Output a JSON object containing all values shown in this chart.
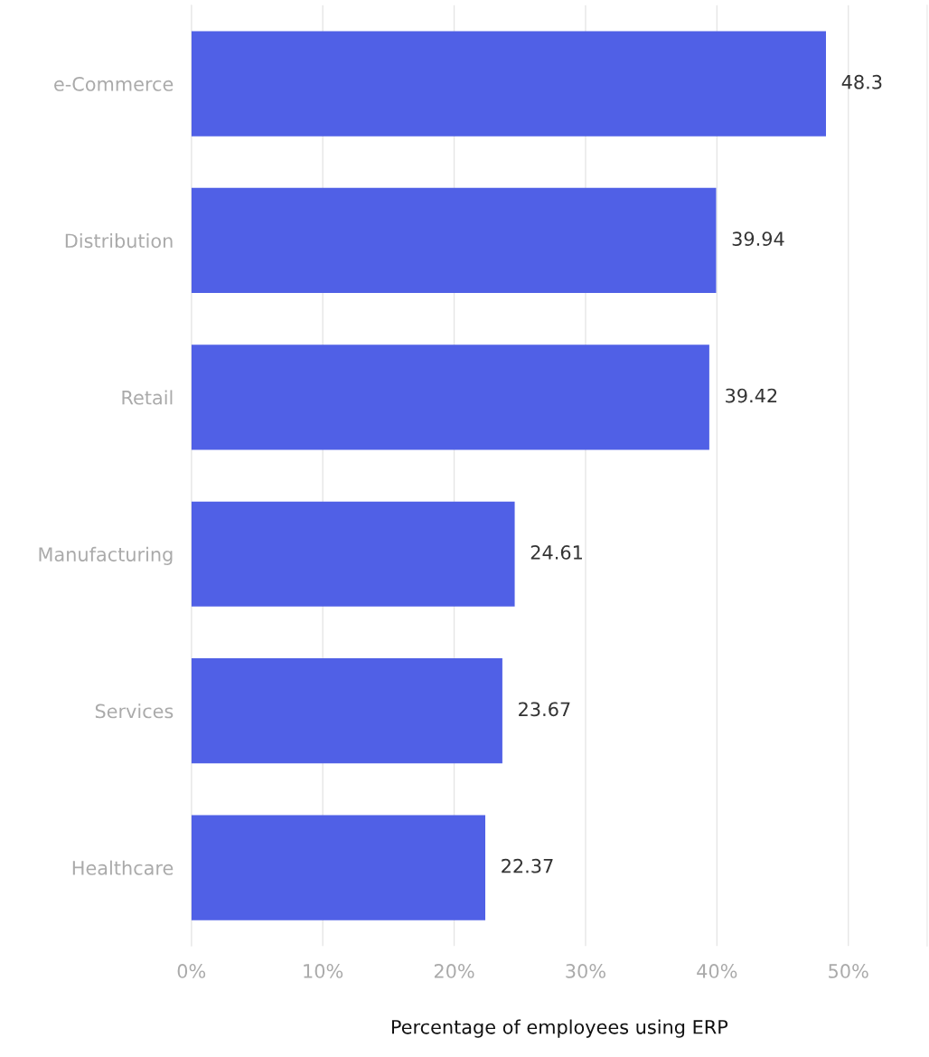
{
  "chart_data": {
    "type": "bar",
    "orientation": "horizontal",
    "xlabel": "Percentage of employees using ERP",
    "categories": [
      "e-Commerce",
      "Distribution",
      "Retail",
      "Manufacturing",
      "Services",
      "Healthcare"
    ],
    "values": [
      48.3,
      39.94,
      39.42,
      24.61,
      23.67,
      22.37
    ],
    "color": "#5060e6",
    "xlim": [
      0,
      56
    ],
    "xticks": [
      {
        "value": 0,
        "label": "0%"
      },
      {
        "value": 10,
        "label": "10%"
      },
      {
        "value": 20,
        "label": "20%"
      },
      {
        "value": 30,
        "label": "30%"
      },
      {
        "value": 40,
        "label": "40%"
      },
      {
        "value": 50,
        "label": "50%"
      }
    ],
    "grid": "x",
    "data_labels": true
  }
}
